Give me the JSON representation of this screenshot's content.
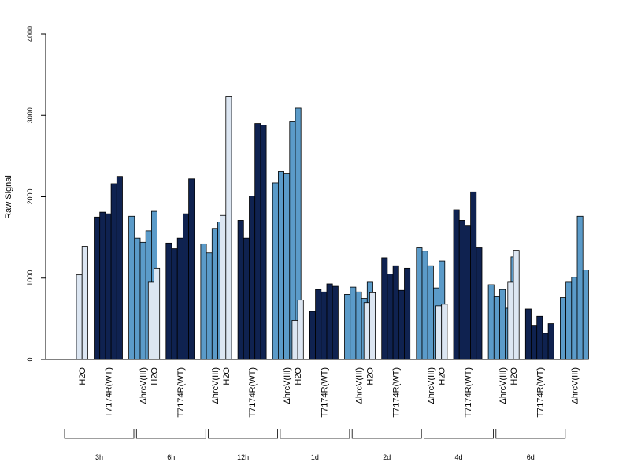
{
  "chart_data": {
    "type": "bar",
    "ylabel": "Raw Signal",
    "ylim": [
      0,
      4000
    ],
    "yticks": [
      0,
      1000,
      2000,
      3000,
      4000
    ],
    "colors": {
      "H2O": "#dce6f2",
      "T7174R(WT)": "#0f2250",
      "ΔhrcV(III)": "#5b9bc9"
    },
    "groups": [
      {
        "time": "3h",
        "treatments": [
          {
            "label": "H2O",
            "values": [
              1040,
              1390
            ]
          },
          {
            "label": "T7174R(WT)",
            "values": [
              1750,
              1810,
              1790,
              2160,
              2250
            ]
          },
          {
            "label": "ΔhrcV(III)",
            "values": [
              1760,
              1490,
              1440,
              1580,
              1820
            ]
          }
        ]
      },
      {
        "time": "6h",
        "treatments": [
          {
            "label": "H2O",
            "values": [
              950,
              1120
            ]
          },
          {
            "label": "T7174R(WT)",
            "values": [
              1430,
              1360,
              1490,
              1790,
              2220
            ]
          },
          {
            "label": "ΔhrcV(III)",
            "values": [
              1420,
              1310,
              1610,
              1690,
              1610
            ]
          }
        ]
      },
      {
        "time": "12h",
        "treatments": [
          {
            "label": "H2O",
            "values": [
              1770,
              3230
            ]
          },
          {
            "label": "T7174R(WT)",
            "values": [
              1710,
              1490,
              2010,
              2900,
              2880
            ]
          },
          {
            "label": "ΔhrcV(III)",
            "values": [
              2170,
              2310,
              2280,
              2920,
              3090
            ]
          }
        ]
      },
      {
        "time": "1d",
        "treatments": [
          {
            "label": "H2O",
            "values": [
              480,
              730
            ]
          },
          {
            "label": "T7174R(WT)",
            "values": [
              590,
              860,
              830,
              930,
              900
            ]
          },
          {
            "label": "ΔhrcV(III)",
            "values": [
              800,
              890,
              830,
              750,
              950
            ]
          }
        ]
      },
      {
        "time": "2d",
        "treatments": [
          {
            "label": "H2O",
            "values": [
              700,
              820
            ]
          },
          {
            "label": "T7174R(WT)",
            "values": [
              1250,
              1050,
              1150,
              850,
              1120
            ]
          },
          {
            "label": "ΔhrcV(III)",
            "values": [
              1380,
              1330,
              1150,
              880,
              1210
            ]
          }
        ]
      },
      {
        "time": "4d",
        "treatments": [
          {
            "label": "H2O",
            "values": [
              660,
              680
            ]
          },
          {
            "label": "T7174R(WT)",
            "values": [
              1840,
              1710,
              1640,
              2060,
              1380
            ]
          },
          {
            "label": "ΔhrcV(III)",
            "values": [
              920,
              770,
              860,
              630,
              1260
            ]
          }
        ]
      },
      {
        "time": "6d",
        "treatments": [
          {
            "label": "H2O",
            "values": [
              950,
              1340
            ]
          },
          {
            "label": "T7174R(WT)",
            "values": [
              620,
              420,
              530,
              320,
              440
            ]
          },
          {
            "label": "ΔhrcV(III)",
            "values": [
              760,
              950,
              1010,
              1760,
              1100
            ]
          }
        ]
      }
    ]
  }
}
